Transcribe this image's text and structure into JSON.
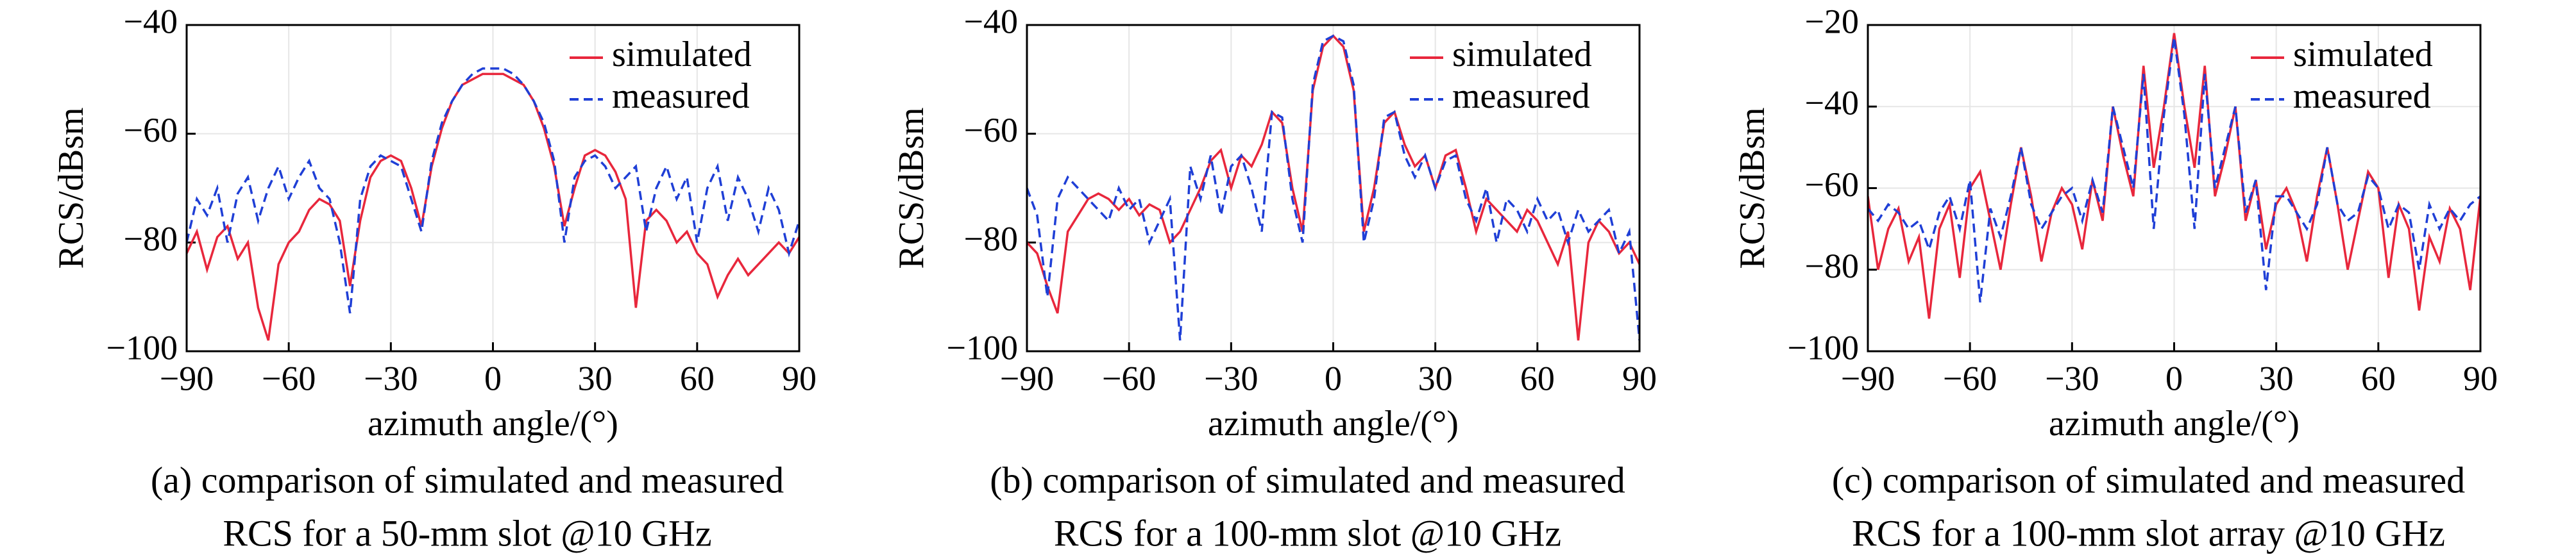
{
  "chart_data": [
    {
      "type": "line",
      "caption": [
        "(a) comparison of simulated and measured",
        "RCS for a 50-mm slot @10 GHz"
      ],
      "xlabel": "azimuth angle/(°)",
      "ylabel": "RCS/dBsm",
      "grid": true,
      "legend": "upper right",
      "xlim": [
        -90,
        90
      ],
      "ylim": [
        -100,
        -40
      ],
      "xticks": [
        {
          "value": -90,
          "label": "−90"
        },
        {
          "value": -60,
          "label": "−60"
        },
        {
          "value": -30,
          "label": "−30"
        },
        0,
        30,
        60,
        90
      ],
      "yticks": [
        {
          "value": -100,
          "label": "−100"
        },
        {
          "value": -80,
          "label": "−80"
        },
        {
          "value": -60,
          "label": "−60"
        },
        {
          "value": -40,
          "label": "−40"
        }
      ],
      "x": [
        -90,
        -87,
        -84,
        -81,
        -78,
        -75,
        -72,
        -69,
        -66,
        -63,
        -60,
        -57,
        -54,
        -51,
        -48,
        -45,
        -42,
        -39,
        -36,
        -33,
        -30,
        -27,
        -24,
        -21,
        -18,
        -15,
        -12,
        -9,
        -6,
        -3,
        0,
        3,
        6,
        9,
        12,
        15,
        18,
        21,
        24,
        27,
        30,
        33,
        36,
        39,
        42,
        45,
        48,
        51,
        54,
        57,
        60,
        63,
        66,
        69,
        72,
        75,
        78,
        81,
        84,
        87,
        90
      ],
      "series": [
        {
          "name": "simulated",
          "color": "#e8273c",
          "linestyle": "solid",
          "values": [
            -82,
            -78,
            -85,
            -79,
            -77,
            -83,
            -80,
            -92,
            -98,
            -84,
            -80,
            -78,
            -74,
            -72,
            -73,
            -76,
            -88,
            -76,
            -68,
            -65,
            -64,
            -65,
            -70,
            -77,
            -66,
            -59,
            -54,
            -51,
            -50,
            -49,
            -49,
            -49,
            -50,
            -51,
            -54,
            -59,
            -66,
            -77,
            -70,
            -64,
            -63,
            -64,
            -67,
            -72,
            -92,
            -76,
            -74,
            -76,
            -80,
            -78,
            -82,
            -84,
            -90,
            -86,
            -83,
            -86,
            -84,
            -82,
            -80,
            -82,
            -79
          ]
        },
        {
          "name": "measured",
          "color": "#1f3fd6",
          "linestyle": "dashed",
          "values": [
            -80,
            -72,
            -75,
            -70,
            -80,
            -71,
            -68,
            -76,
            -70,
            -66,
            -72,
            -68,
            -65,
            -70,
            -72,
            -80,
            -93,
            -72,
            -66,
            -64,
            -65,
            -66,
            -72,
            -78,
            -65,
            -58,
            -54,
            -51,
            -49,
            -48,
            -48,
            -48,
            -49,
            -51,
            -54,
            -58,
            -65,
            -80,
            -68,
            -65,
            -64,
            -66,
            -70,
            -68,
            -66,
            -78,
            -70,
            -66,
            -72,
            -68,
            -80,
            -70,
            -66,
            -76,
            -68,
            -72,
            -78,
            -70,
            -74,
            -82,
            -76
          ]
        }
      ]
    },
    {
      "type": "line",
      "caption": [
        "(b) comparison of simulated and measured",
        "RCS for a 100-mm slot @10 GHz"
      ],
      "xlabel": "azimuth angle/(°)",
      "ylabel": "RCS/dBsm",
      "grid": true,
      "legend": "upper right",
      "xlim": [
        -90,
        90
      ],
      "ylim": [
        -100,
        -40
      ],
      "xticks": [
        {
          "value": -90,
          "label": "−90"
        },
        {
          "value": -60,
          "label": "−60"
        },
        {
          "value": -30,
          "label": "−30"
        },
        0,
        30,
        60,
        90
      ],
      "yticks": [
        {
          "value": -100,
          "label": "−100"
        },
        {
          "value": -80,
          "label": "−80"
        },
        {
          "value": -60,
          "label": "−60"
        },
        {
          "value": -40,
          "label": "−40"
        }
      ],
      "x": [
        -90,
        -87,
        -84,
        -81,
        -78,
        -75,
        -72,
        -69,
        -66,
        -63,
        -60,
        -57,
        -54,
        -51,
        -48,
        -45,
        -42,
        -39,
        -36,
        -33,
        -30,
        -27,
        -24,
        -21,
        -18,
        -15,
        -12,
        -9,
        -6,
        -3,
        0,
        3,
        6,
        9,
        12,
        15,
        18,
        21,
        24,
        27,
        30,
        33,
        36,
        39,
        42,
        45,
        48,
        51,
        54,
        57,
        60,
        63,
        66,
        69,
        72,
        75,
        78,
        81,
        84,
        87,
        90
      ],
      "series": [
        {
          "name": "simulated",
          "color": "#e8273c",
          "linestyle": "solid",
          "values": [
            -80,
            -82,
            -88,
            -93,
            -78,
            -75,
            -72,
            -71,
            -72,
            -74,
            -72,
            -75,
            -73,
            -74,
            -80,
            -78,
            -74,
            -70,
            -65,
            -63,
            -70,
            -64,
            -66,
            -62,
            -56,
            -58,
            -70,
            -78,
            -52,
            -44,
            -42,
            -44,
            -52,
            -78,
            -70,
            -58,
            -56,
            -62,
            -66,
            -64,
            -70,
            -64,
            -63,
            -70,
            -78,
            -72,
            -74,
            -76,
            -78,
            -74,
            -76,
            -80,
            -84,
            -78,
            -98,
            -80,
            -76,
            -78,
            -82,
            -80,
            -84
          ]
        },
        {
          "name": "measured",
          "color": "#1f3fd6",
          "linestyle": "dashed",
          "values": [
            -70,
            -75,
            -90,
            -72,
            -68,
            -70,
            -72,
            -74,
            -76,
            -70,
            -74,
            -72,
            -80,
            -76,
            -72,
            -98,
            -66,
            -72,
            -64,
            -75,
            -66,
            -64,
            -70,
            -78,
            -56,
            -57,
            -72,
            -80,
            -51,
            -43,
            -42,
            -43,
            -51,
            -80,
            -72,
            -57,
            -56,
            -64,
            -68,
            -64,
            -70,
            -65,
            -64,
            -72,
            -76,
            -70,
            -80,
            -72,
            -74,
            -78,
            -72,
            -76,
            -74,
            -80,
            -74,
            -78,
            -76,
            -74,
            -82,
            -78,
            -98
          ]
        }
      ]
    },
    {
      "type": "line",
      "caption": [
        "(c) comparison of simulated and measured",
        "RCS for a 100-mm slot array @10 GHz"
      ],
      "xlabel": "azimuth angle/(°)",
      "ylabel": "RCS/dBsm",
      "grid": true,
      "legend": "upper right",
      "xlim": [
        -90,
        90
      ],
      "ylim": [
        -100,
        -20
      ],
      "xticks": [
        {
          "value": -90,
          "label": "−90"
        },
        {
          "value": -60,
          "label": "−60"
        },
        {
          "value": -30,
          "label": "−30"
        },
        0,
        30,
        60,
        90
      ],
      "yticks": [
        {
          "value": -100,
          "label": "−100"
        },
        {
          "value": -80,
          "label": "−80"
        },
        {
          "value": -60,
          "label": "−60"
        },
        {
          "value": -40,
          "label": "−40"
        },
        {
          "value": -20,
          "label": "−20"
        }
      ],
      "x": [
        -90,
        -87,
        -84,
        -81,
        -78,
        -75,
        -72,
        -69,
        -66,
        -63,
        -60,
        -57,
        -54,
        -51,
        -48,
        -45,
        -42,
        -39,
        -36,
        -33,
        -30,
        -27,
        -24,
        -21,
        -18,
        -15,
        -12,
        -9,
        -6,
        -3,
        0,
        3,
        6,
        9,
        12,
        15,
        18,
        21,
        24,
        27,
        30,
        33,
        36,
        39,
        42,
        45,
        48,
        51,
        54,
        57,
        60,
        63,
        66,
        69,
        72,
        75,
        78,
        81,
        84,
        87,
        90
      ],
      "series": [
        {
          "name": "simulated",
          "color": "#e8273c",
          "linestyle": "solid",
          "values": [
            -62,
            -80,
            -70,
            -65,
            -78,
            -72,
            -92,
            -70,
            -64,
            -82,
            -60,
            -56,
            -68,
            -80,
            -64,
            -50,
            -62,
            -78,
            -66,
            -60,
            -64,
            -75,
            -58,
            -68,
            -40,
            -52,
            -62,
            -30,
            -55,
            -40,
            -22,
            -40,
            -55,
            -30,
            -62,
            -52,
            -40,
            -68,
            -58,
            -75,
            -64,
            -60,
            -66,
            -78,
            -62,
            -50,
            -64,
            -80,
            -68,
            -56,
            -60,
            -82,
            -64,
            -70,
            -90,
            -72,
            -78,
            -65,
            -70,
            -85,
            -62
          ]
        },
        {
          "name": "measured",
          "color": "#1f3fd6",
          "linestyle": "dashed",
          "values": [
            -65,
            -68,
            -64,
            -66,
            -70,
            -68,
            -75,
            -66,
            -62,
            -70,
            -58,
            -88,
            -65,
            -72,
            -62,
            -50,
            -64,
            -70,
            -66,
            -62,
            -60,
            -68,
            -58,
            -66,
            -40,
            -50,
            -60,
            -32,
            -70,
            -42,
            -23,
            -42,
            -70,
            -32,
            -60,
            -50,
            -40,
            -66,
            -58,
            -85,
            -62,
            -62,
            -66,
            -70,
            -64,
            -50,
            -64,
            -68,
            -66,
            -57,
            -60,
            -70,
            -64,
            -66,
            -80,
            -64,
            -70,
            -65,
            -68,
            -64,
            -62
          ]
        }
      ]
    }
  ]
}
